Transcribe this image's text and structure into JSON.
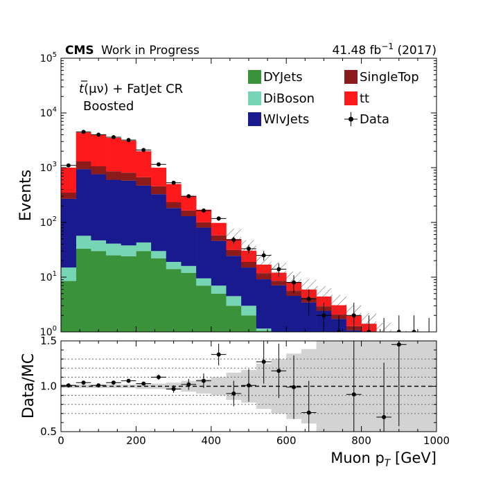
{
  "chart_data": {
    "type": "histogram-stacked",
    "header": {
      "experiment": "CMS",
      "status": "Work in Progress",
      "luminosity": "41.48 fb",
      "lumi_exp": "−1",
      "period": "(2017)"
    },
    "annotation": {
      "line1_prefix": "t",
      "line1_rest": "(μν) + FatJet CR",
      "line2": "Boosted"
    },
    "xlabel": "Muon p",
    "xlabel_sub": "T",
    "xlabel_unit": "[GeV]",
    "ylabel_main": "Events",
    "ylabel_ratio": "Data/MC",
    "xlim": [
      0,
      1000
    ],
    "ylim_main": [
      1,
      100000
    ],
    "ylim_ratio": [
      0.5,
      1.5
    ],
    "y_scale": "log",
    "x_ticks": [
      "0",
      "200",
      "400",
      "600",
      "800",
      "1000"
    ],
    "y_ticks_main": [
      {
        "base": "10",
        "exp": "0"
      },
      {
        "base": "10",
        "exp": "1"
      },
      {
        "base": "10",
        "exp": "2"
      },
      {
        "base": "10",
        "exp": "3"
      },
      {
        "base": "10",
        "exp": "4"
      },
      {
        "base": "10",
        "exp": "5"
      }
    ],
    "y_ticks_ratio": [
      "0.5",
      "1.0",
      "1.5"
    ],
    "ratio_gridlines": [
      0.7,
      0.8,
      0.9,
      1.1,
      1.2,
      1.3
    ],
    "legend_placement": "top-right",
    "legend": [
      {
        "name": "DYJets",
        "color": "#3a923a",
        "kind": "box"
      },
      {
        "name": "SingleTop",
        "color": "#8b1a1a",
        "kind": "box"
      },
      {
        "name": "DiBoson",
        "color": "#76d5b5",
        "kind": "box"
      },
      {
        "name": "tt",
        "color": "#fe1a1a",
        "kind": "box"
      },
      {
        "name": "WlvJets",
        "color": "#1a1a8f",
        "kind": "box"
      },
      {
        "name": "Data",
        "color": "#000000",
        "kind": "marker"
      }
    ],
    "bin_edges": [
      0,
      40,
      80,
      120,
      160,
      200,
      240,
      280,
      320,
      360,
      400,
      440,
      480,
      520,
      560,
      600,
      640,
      680,
      720,
      760,
      800,
      840,
      880,
      920,
      960,
      1000
    ],
    "series": [
      {
        "name": "DYJets",
        "color": "#3a923a",
        "values": [
          8.5,
          33,
          30,
          25,
          24,
          30,
          22,
          14,
          12,
          7,
          5,
          3,
          2,
          1.05,
          0.5,
          0.3,
          0.2,
          0.1,
          0.1,
          0.05,
          0.05,
          0.03,
          0.03,
          0.02,
          0.02
        ]
      },
      {
        "name": "DiBoson",
        "color": "#76d5b5",
        "values": [
          6.5,
          24,
          17,
          16,
          14,
          13,
          8,
          5,
          4,
          2.5,
          2,
          1.5,
          1,
          0.1,
          0.08,
          0.05,
          0.04,
          0.03,
          0.02,
          0.02,
          0.01,
          0.01,
          0.01,
          0.01,
          0.01
        ]
      },
      {
        "name": "WlvJets",
        "color": "#1a1a8f",
        "values": [
          255,
          883,
          713,
          559,
          542,
          427,
          298,
          164,
          114,
          71,
          39,
          20,
          12,
          8,
          6.5,
          4.2,
          3.2,
          2.3,
          1.6,
          1.0,
          0.7,
          0.45,
          0.3,
          0.2,
          0.15
        ]
      },
      {
        "name": "SingleTop",
        "color": "#8b1a1a",
        "values": [
          80,
          360,
          300,
          260,
          230,
          200,
          130,
          50,
          35,
          20,
          12,
          7,
          4,
          2.7,
          1.5,
          1.1,
          0.8,
          0.5,
          0.35,
          0.2,
          0.15,
          0.1,
          0.08,
          0.05,
          0.04
        ]
      },
      {
        "name": "tt",
        "color": "#fe1a1a",
        "values": [
          650,
          3100,
          2900,
          2640,
          2300,
          1330,
          540,
          270,
          140,
          70,
          40,
          18,
          11.5,
          5.1,
          3.5,
          2.5,
          1.7,
          1.5,
          1.0,
          0.7,
          0.5,
          0.35,
          0.25,
          0.15,
          0.1
        ]
      }
    ],
    "hatched_from_bin": 11,
    "data": {
      "name": "Data",
      "x": [
        20,
        60,
        100,
        140,
        180,
        220,
        260,
        300,
        340,
        380,
        420,
        460,
        500,
        540,
        580,
        620,
        660,
        700,
        740,
        780,
        820,
        860,
        900,
        940,
        980
      ],
      "y": [
        1100,
        4500,
        4000,
        3600,
        3200,
        2100,
        1150,
        530,
        300,
        165,
        118,
        48,
        33,
        25,
        14,
        8,
        4,
        2,
        1,
        2,
        1,
        0,
        1,
        1,
        0
      ]
    },
    "ratio": {
      "x": [
        20,
        60,
        100,
        140,
        180,
        220,
        260,
        300,
        340,
        380,
        420,
        460,
        500,
        540,
        580,
        620,
        660,
        780,
        860,
        900
      ],
      "y": [
        1.01,
        1.04,
        1.01,
        1.04,
        1.06,
        1.03,
        1.1,
        0.97,
        1.02,
        1.06,
        1.35,
        0.92,
        1.01,
        1.27,
        1.17,
        0.99,
        0.71,
        0.91,
        0.66,
        1.46
      ],
      "yerr": [
        0.02,
        0.02,
        0.02,
        0.02,
        0.02,
        0.02,
        0.03,
        0.04,
        0.06,
        0.08,
        0.12,
        0.14,
        0.18,
        0.24,
        0.3,
        0.35,
        0.35,
        0.7,
        0.6,
        0.9
      ]
    },
    "ratio_band": [
      0.02,
      0.02,
      0.02,
      0.02,
      0.02,
      0.03,
      0.03,
      0.04,
      0.06,
      0.08,
      0.1,
      0.15,
      0.18,
      0.25,
      0.3,
      0.36,
      0.41,
      0.5,
      0.5,
      0.5,
      0.5,
      0.5,
      0.5,
      0.5,
      0.5
    ]
  }
}
